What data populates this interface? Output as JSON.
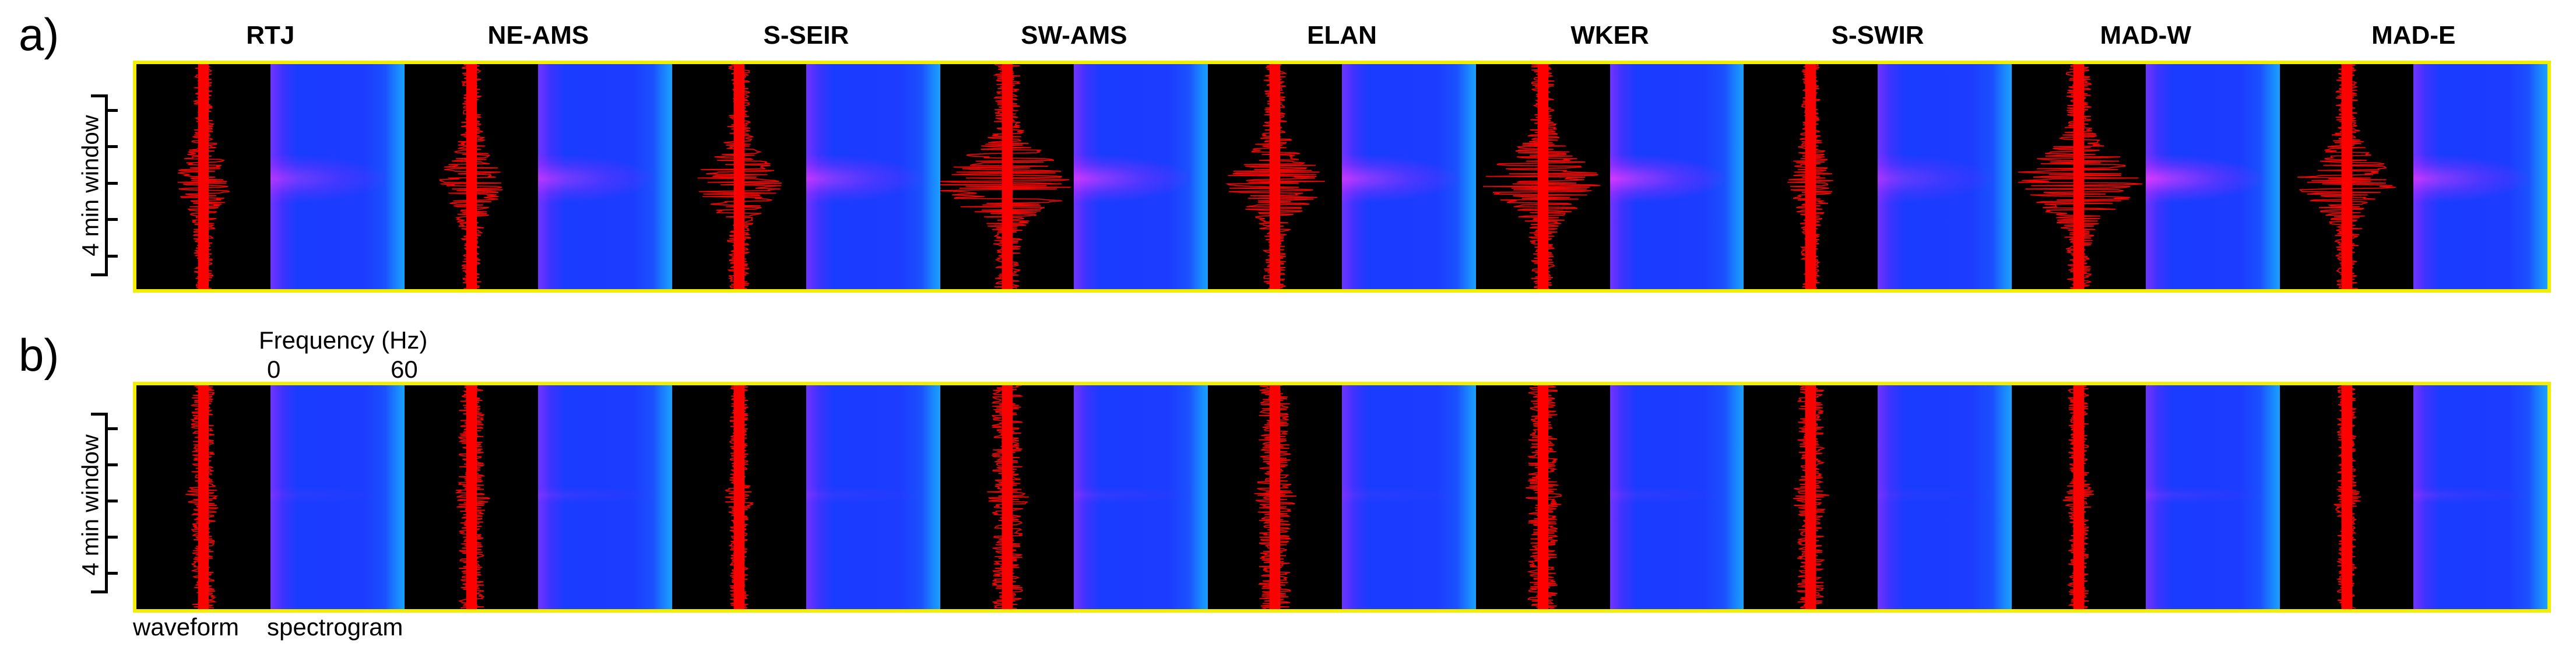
{
  "panels": [
    {
      "id": "a",
      "label": "a)",
      "stations": [
        {
          "name": "RTJ",
          "waveform_amplitude": 0.28,
          "spectrogram_energy": 0.55
        },
        {
          "name": "NE-AMS",
          "waveform_amplitude": 0.35,
          "spectrogram_energy": 0.6
        },
        {
          "name": "S-SEIR",
          "waveform_amplitude": 0.5,
          "spectrogram_energy": 0.65
        },
        {
          "name": "SW-AMS",
          "waveform_amplitude": 0.95,
          "spectrogram_energy": 0.75
        },
        {
          "name": "ELAN",
          "waveform_amplitude": 0.6,
          "spectrogram_energy": 0.7
        },
        {
          "name": "WKER",
          "waveform_amplitude": 0.75,
          "spectrogram_energy": 0.8
        },
        {
          "name": "S-SWIR",
          "waveform_amplitude": 0.22,
          "spectrogram_energy": 0.45
        },
        {
          "name": "MAD-W",
          "waveform_amplitude": 0.85,
          "spectrogram_energy": 0.85
        },
        {
          "name": "MAD-E",
          "waveform_amplitude": 0.6,
          "spectrogram_energy": 0.7
        }
      ]
    },
    {
      "id": "b",
      "label": "b)",
      "stations": [
        {
          "name": "RTJ",
          "waveform_amplitude": 0.2,
          "spectrogram_energy": 0.15
        },
        {
          "name": "NE-AMS",
          "waveform_amplitude": 0.22,
          "spectrogram_energy": 0.25
        },
        {
          "name": "S-SEIR",
          "waveform_amplitude": 0.12,
          "spectrogram_energy": 0.2
        },
        {
          "name": "SW-AMS",
          "waveform_amplitude": 0.3,
          "spectrogram_energy": 0.25
        },
        {
          "name": "ELAN",
          "waveform_amplitude": 0.32,
          "spectrogram_energy": 0.15
        },
        {
          "name": "WKER",
          "waveform_amplitude": 0.28,
          "spectrogram_energy": 0.2
        },
        {
          "name": "S-SWIR",
          "waveform_amplitude": 0.24,
          "spectrogram_energy": 0.1
        },
        {
          "name": "MAD-W",
          "waveform_amplitude": 0.15,
          "spectrogram_energy": 0.3
        },
        {
          "name": "MAD-E",
          "waveform_amplitude": 0.12,
          "spectrogram_energy": 0.3
        }
      ]
    }
  ],
  "time_axis_label": "4 min window",
  "frequency": {
    "label": "Frequency (Hz)",
    "min": "0",
    "max": "60"
  },
  "legend": {
    "waveform": "waveform",
    "spectrogram": "spectrogram"
  },
  "colors": {
    "waveform": "#ff0000",
    "spectrogram_base": "#1a3cff",
    "frame": "#f2ee00"
  }
}
